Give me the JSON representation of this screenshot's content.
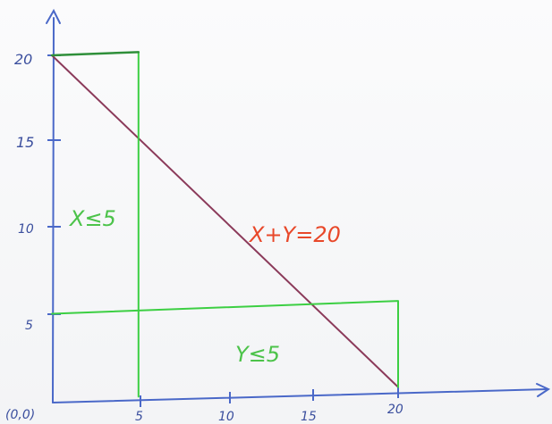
{
  "chart_data": {
    "type": "line",
    "x_ticks": [
      "5",
      "10",
      "15",
      "20"
    ],
    "y_ticks": [
      "20",
      "15",
      "10",
      "5"
    ],
    "origin_label": "(0,0)",
    "xlim": [
      0,
      20
    ],
    "ylim": [
      0,
      20
    ],
    "series": [
      {
        "points": [
          [
            0,
            20
          ],
          [
            20,
            0
          ]
        ]
      },
      {
        "points": [
          [
            5,
            0
          ],
          [
            5,
            20
          ]
        ]
      },
      {
        "points": [
          [
            0,
            20
          ],
          [
            5,
            20
          ]
        ]
      },
      {
        "points": [
          [
            0,
            5
          ],
          [
            20,
            5
          ],
          [
            20,
            0
          ]
        ]
      }
    ],
    "annotations": [
      {
        "text": "X+Y=20",
        "color": "#e8482a"
      },
      {
        "text": "X≤5",
        "color": "#4cc34a"
      },
      {
        "text": "Y≤5",
        "color": "#4cc34a"
      }
    ],
    "colors": {
      "axes": "#4a68c8",
      "diagonal": "#8b3a5a",
      "constraints": "#3ccf43",
      "cap": "#2f8f3a"
    }
  }
}
